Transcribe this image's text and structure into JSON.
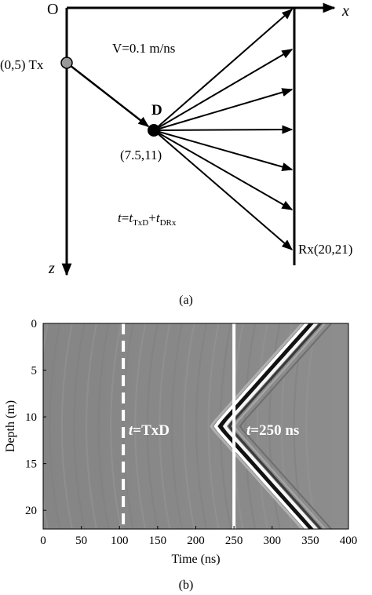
{
  "diagram_a": {
    "origin_label": "O",
    "x_axis_label": "x",
    "z_axis_label": "z",
    "velocity_label": "V=0.1 m/ns",
    "tx_label": "(0,5) Tx",
    "d_label": "D",
    "d_coord_label": "(7.5,11)",
    "travel_time_label": {
      "t": "t",
      "eq": "=",
      "t1": "t",
      "s1": "TxD",
      "plus": "+",
      "t2": "t",
      "s2": "DRx"
    },
    "rx_label": "Rx(20,21)",
    "caption": "(a)",
    "ray_count": 7,
    "point_fill_tx": "#999999",
    "point_fill_d": "#000000"
  },
  "chart_b": {
    "caption": "(b)",
    "chart_data": {
      "type": "heatmap",
      "xlabel": "Time (ns)",
      "ylabel": "Depth (m)",
      "xlim": [
        0,
        400
      ],
      "ylim": [
        0,
        22
      ],
      "x_ticks": [
        "0",
        "50",
        "100",
        "150",
        "200",
        "250",
        "300",
        "350",
        "400"
      ],
      "y_ticks": [
        "0",
        "5",
        "10",
        "15",
        "20"
      ],
      "annotations": [
        {
          "text_t": "t",
          "text_rest": "=TxD",
          "x": 105,
          "style": "dashed-white-line"
        },
        {
          "text_t": "t",
          "text_rest": "=250 ns",
          "x": 250,
          "style": "solid-white-line"
        }
      ],
      "background_color": "#8a8a8a"
    }
  }
}
